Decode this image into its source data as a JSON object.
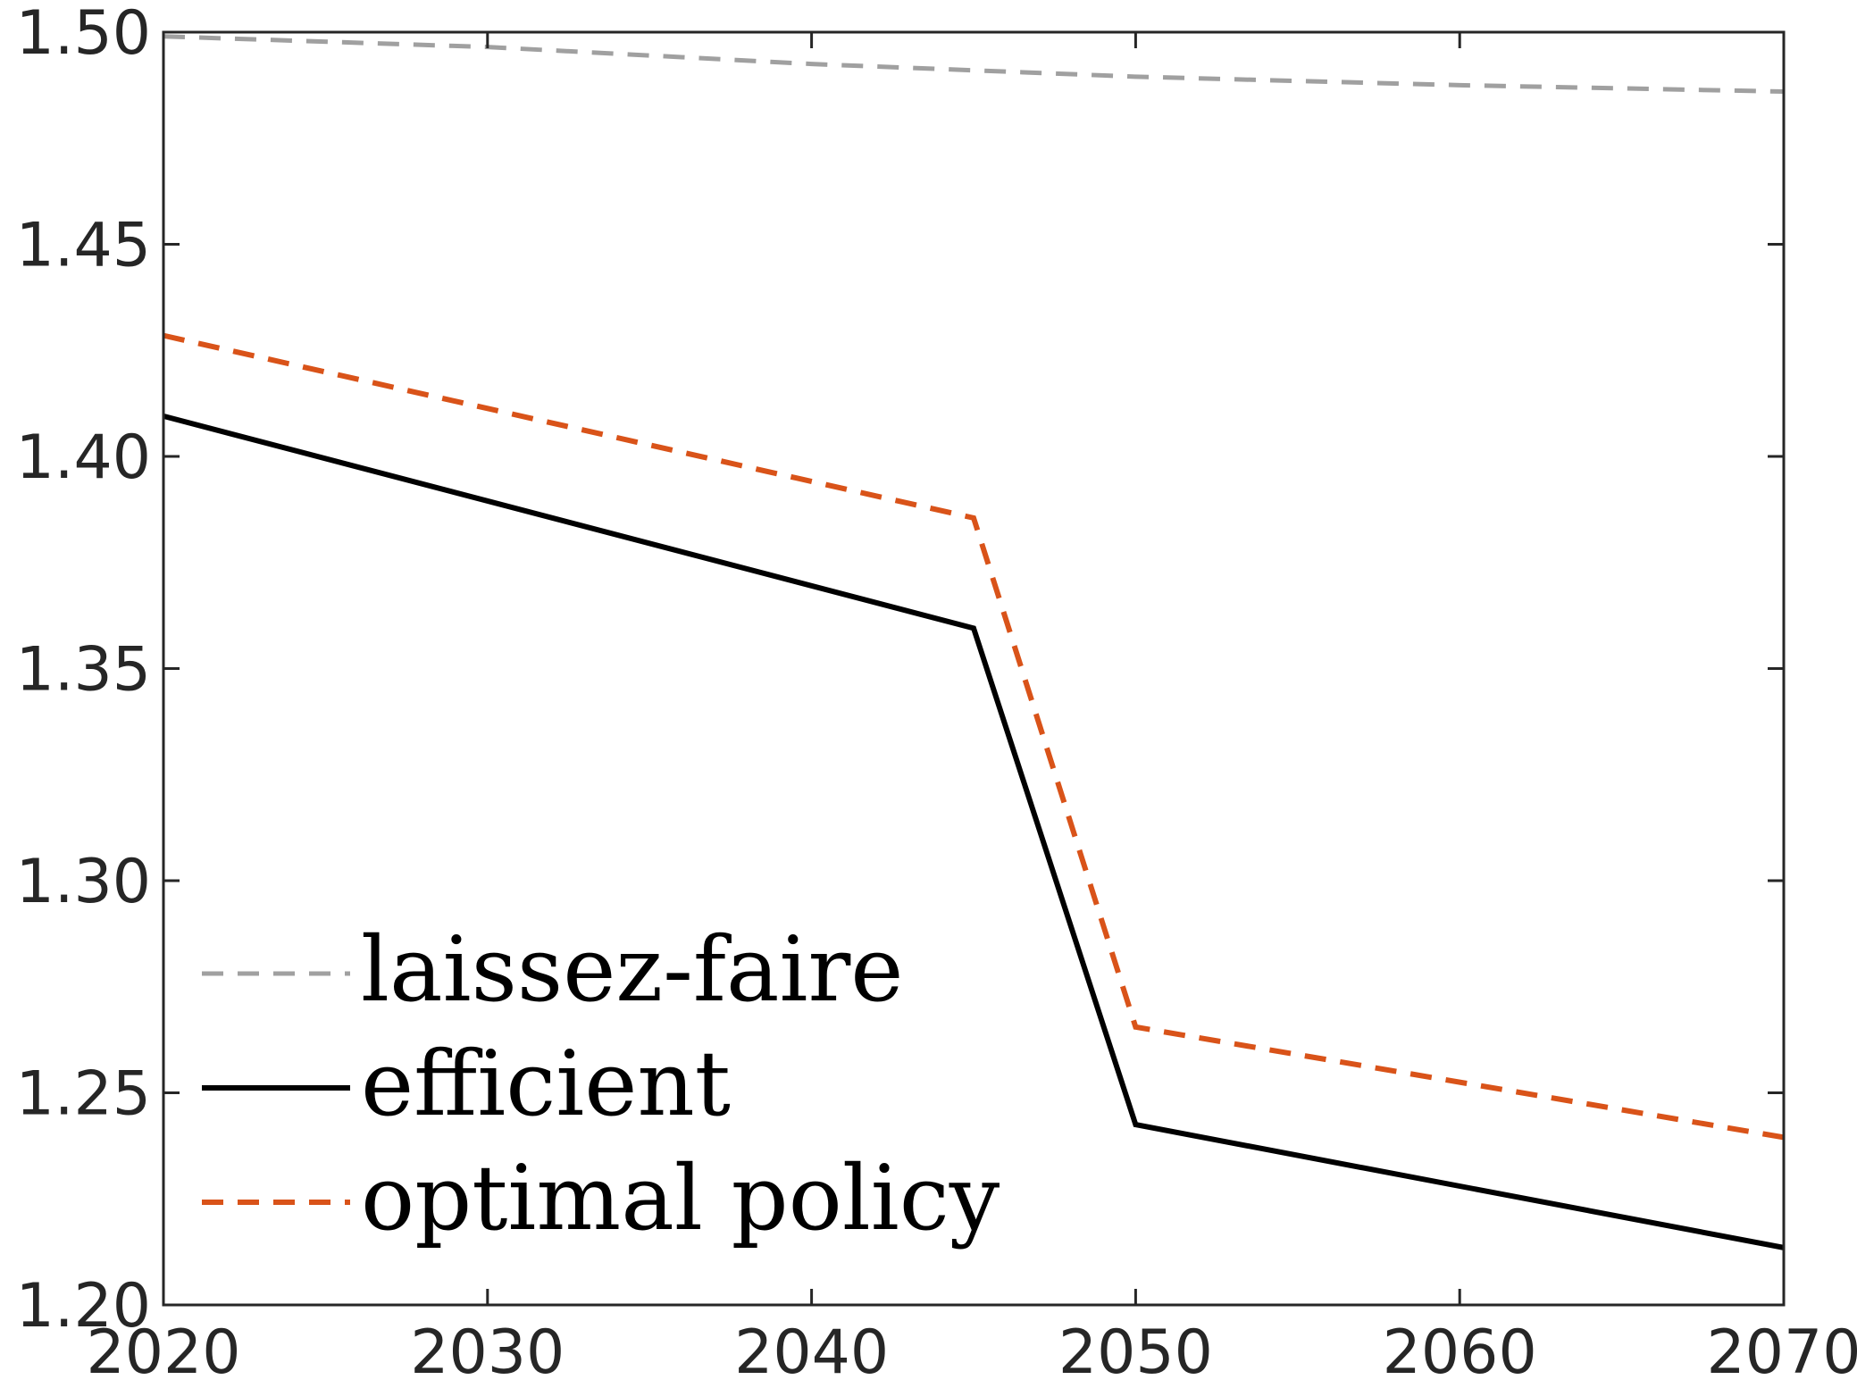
{
  "chart_data": {
    "type": "line",
    "title": "",
    "xlabel": "",
    "ylabel": "",
    "x": [
      2020,
      2045,
      2050,
      2070
    ],
    "xlim": [
      2020,
      2070
    ],
    "ylim": [
      1.2,
      1.5
    ],
    "x_ticks": [
      "2020",
      "2030",
      "2040",
      "2050",
      "2060",
      "2070"
    ],
    "y_ticks": [
      "1.20",
      "1.25",
      "1.30",
      "1.35",
      "1.40",
      "1.45",
      "1.50"
    ],
    "grid": false,
    "legend_position": "bottom-left",
    "series": [
      {
        "name": "laissez-faire",
        "color": "#a0a0a0",
        "dash": "dashed",
        "x": [
          2020,
          2030,
          2040,
          2050,
          2060,
          2070
        ],
        "values": [
          1.499,
          1.4965,
          1.4925,
          1.4895,
          1.4875,
          1.486
        ]
      },
      {
        "name": "efficient",
        "color": "#000000",
        "dash": "solid",
        "x": [
          2020,
          2045,
          2050,
          2070
        ],
        "values": [
          1.4095,
          1.3595,
          1.2425,
          1.2135
        ]
      },
      {
        "name": "optimal policy",
        "color": "#d95319",
        "dash": "dashed",
        "x": [
          2020,
          2045,
          2050,
          2070
        ],
        "values": [
          1.4285,
          1.3855,
          1.2655,
          1.2395
        ]
      }
    ]
  }
}
